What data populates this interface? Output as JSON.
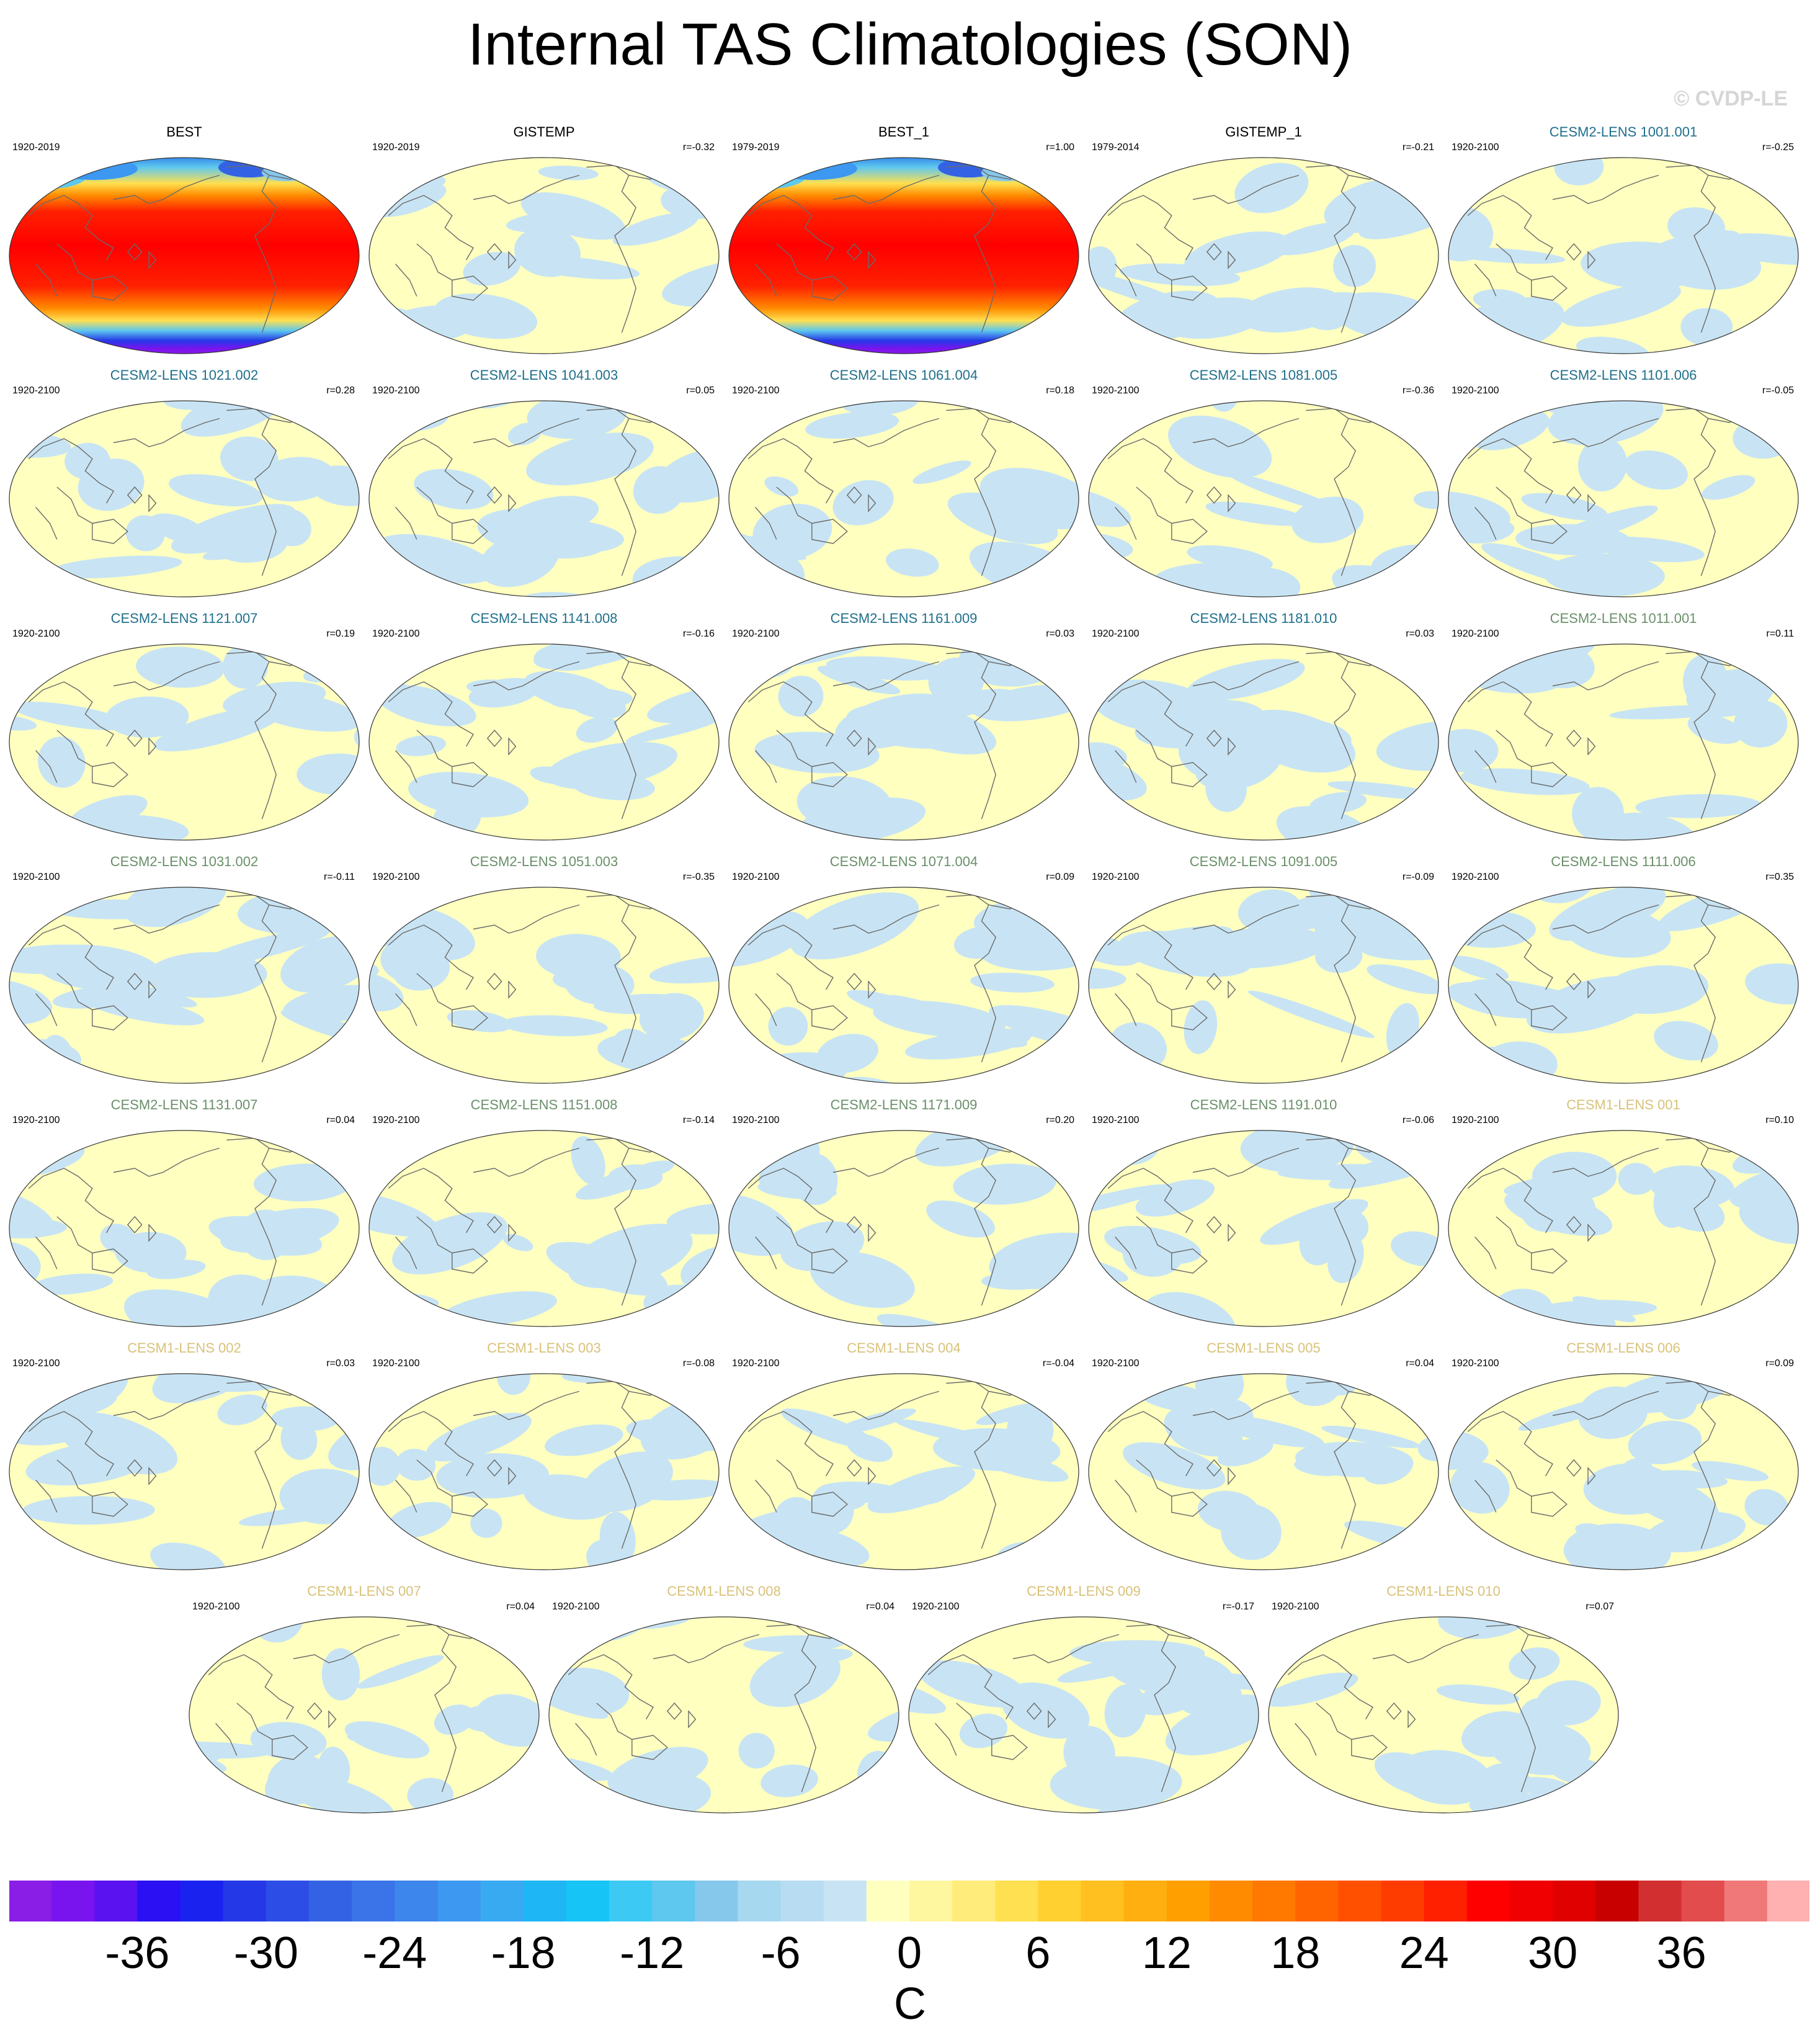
{
  "title": "Internal TAS Climatologies (SON)",
  "copyright": "© CVDP-LE",
  "chart_data": {
    "type": "heatmap",
    "description_kind": "map-panels",
    "panels": [
      {
        "name": "BEST",
        "years": "1920-2019",
        "r": "",
        "style": "full",
        "title_color": "#000000"
      },
      {
        "name": "GISTEMP",
        "years": "1920-2019",
        "r": "r=-0.32",
        "style": "anomaly",
        "title_color": "#000000"
      },
      {
        "name": "BEST_1",
        "years": "1979-2019",
        "r": "r=1.00",
        "style": "full",
        "title_color": "#000000"
      },
      {
        "name": "GISTEMP_1",
        "years": "1979-2014",
        "r": "r=-0.21",
        "style": "anomaly",
        "title_color": "#000000"
      },
      {
        "name": "CESM2-LENS 1001.001",
        "years": "1920-2100",
        "r": "r=-0.25",
        "style": "anomaly",
        "title_color": "#1f6f8b"
      },
      {
        "name": "CESM2-LENS 1021.002",
        "years": "1920-2100",
        "r": "r=0.28",
        "style": "anomaly",
        "title_color": "#1f6f8b"
      },
      {
        "name": "CESM2-LENS 1041.003",
        "years": "1920-2100",
        "r": "r=0.05",
        "style": "anomaly",
        "title_color": "#1f6f8b"
      },
      {
        "name": "CESM2-LENS 1061.004",
        "years": "1920-2100",
        "r": "r=0.18",
        "style": "anomaly",
        "title_color": "#1f6f8b"
      },
      {
        "name": "CESM2-LENS 1081.005",
        "years": "1920-2100",
        "r": "r=-0.36",
        "style": "anomaly",
        "title_color": "#1f6f8b"
      },
      {
        "name": "CESM2-LENS 1101.006",
        "years": "1920-2100",
        "r": "r=-0.05",
        "style": "anomaly",
        "title_color": "#1f6f8b"
      },
      {
        "name": "CESM2-LENS 1121.007",
        "years": "1920-2100",
        "r": "r=0.19",
        "style": "anomaly",
        "title_color": "#1f6f8b"
      },
      {
        "name": "CESM2-LENS 1141.008",
        "years": "1920-2100",
        "r": "r=-0.16",
        "style": "anomaly",
        "title_color": "#1f6f8b"
      },
      {
        "name": "CESM2-LENS 1161.009",
        "years": "1920-2100",
        "r": "r=0.03",
        "style": "anomaly",
        "title_color": "#1f6f8b"
      },
      {
        "name": "CESM2-LENS 1181.010",
        "years": "1920-2100",
        "r": "r=0.03",
        "style": "anomaly",
        "title_color": "#1f6f8b"
      },
      {
        "name": "CESM2-LENS 1011.001",
        "years": "1920-2100",
        "r": "r=0.11",
        "style": "anomaly",
        "title_color": "#6a8f6a"
      },
      {
        "name": "CESM2-LENS 1031.002",
        "years": "1920-2100",
        "r": "r=-0.11",
        "style": "anomaly",
        "title_color": "#6a8f6a"
      },
      {
        "name": "CESM2-LENS 1051.003",
        "years": "1920-2100",
        "r": "r=-0.35",
        "style": "anomaly",
        "title_color": "#6a8f6a"
      },
      {
        "name": "CESM2-LENS 1071.004",
        "years": "1920-2100",
        "r": "r=0.09",
        "style": "anomaly",
        "title_color": "#6a8f6a"
      },
      {
        "name": "CESM2-LENS 1091.005",
        "years": "1920-2100",
        "r": "r=-0.09",
        "style": "anomaly",
        "title_color": "#6a8f6a"
      },
      {
        "name": "CESM2-LENS 1111.006",
        "years": "1920-2100",
        "r": "r=0.35",
        "style": "anomaly",
        "title_color": "#6a8f6a"
      },
      {
        "name": "CESM2-LENS 1131.007",
        "years": "1920-2100",
        "r": "r=0.04",
        "style": "anomaly",
        "title_color": "#6a8f6a"
      },
      {
        "name": "CESM2-LENS 1151.008",
        "years": "1920-2100",
        "r": "r=-0.14",
        "style": "anomaly",
        "title_color": "#6a8f6a"
      },
      {
        "name": "CESM2-LENS 1171.009",
        "years": "1920-2100",
        "r": "r=0.20",
        "style": "anomaly",
        "title_color": "#6a8f6a"
      },
      {
        "name": "CESM2-LENS 1191.010",
        "years": "1920-2100",
        "r": "r=-0.06",
        "style": "anomaly",
        "title_color": "#6a8f6a"
      },
      {
        "name": "CESM1-LENS 001",
        "years": "1920-2100",
        "r": "r=0.10",
        "style": "anomaly",
        "title_color": "#d8c27a"
      },
      {
        "name": "CESM1-LENS 002",
        "years": "1920-2100",
        "r": "r=0.03",
        "style": "anomaly",
        "title_color": "#d8c27a"
      },
      {
        "name": "CESM1-LENS 003",
        "years": "1920-2100",
        "r": "r=-0.08",
        "style": "anomaly",
        "title_color": "#d8c27a"
      },
      {
        "name": "CESM1-LENS 004",
        "years": "1920-2100",
        "r": "r=-0.04",
        "style": "anomaly",
        "title_color": "#d8c27a"
      },
      {
        "name": "CESM1-LENS 005",
        "years": "1920-2100",
        "r": "r=0.04",
        "style": "anomaly",
        "title_color": "#d8c27a"
      },
      {
        "name": "CESM1-LENS 006",
        "years": "1920-2100",
        "r": "r=0.09",
        "style": "anomaly",
        "title_color": "#d8c27a"
      },
      {
        "name": "CESM1-LENS 007",
        "years": "1920-2100",
        "r": "r=0.04",
        "style": "anomaly",
        "title_color": "#d8c27a"
      },
      {
        "name": "CESM1-LENS 008",
        "years": "1920-2100",
        "r": "r=0.04",
        "style": "anomaly",
        "title_color": "#d8c27a"
      },
      {
        "name": "CESM1-LENS 009",
        "years": "1920-2100",
        "r": "r=-0.17",
        "style": "anomaly",
        "title_color": "#d8c27a"
      },
      {
        "name": "CESM1-LENS 010",
        "years": "1920-2100",
        "r": "r=0.07",
        "style": "anomaly",
        "title_color": "#d8c27a"
      }
    ],
    "colorbar": {
      "unit": "C",
      "ticks": [
        "-36",
        "-30",
        "-24",
        "-18",
        "-12",
        "-6",
        "0",
        "6",
        "12",
        "18",
        "24",
        "30",
        "36"
      ],
      "tick_values": [
        -36,
        -30,
        -24,
        -18,
        -12,
        -6,
        0,
        6,
        12,
        18,
        24,
        30,
        36
      ],
      "range": [
        -42,
        42
      ],
      "bin_width": 2,
      "colors": [
        "#8a1ee6",
        "#7a14ee",
        "#5a12f0",
        "#2a10f2",
        "#1a22f0",
        "#2438e8",
        "#2c4ee6",
        "#3462e4",
        "#3a74e8",
        "#3c86ec",
        "#3c98f0",
        "#38aaf2",
        "#1eb6f4",
        "#16c4f6",
        "#3ccaf4",
        "#5ec8ee",
        "#86c8ec",
        "#a6d8f0",
        "#b8dcf2",
        "#c8e4f4",
        "#ffffc0",
        "#fff6a0",
        "#ffec7a",
        "#ffe050",
        "#ffd030",
        "#ffc020",
        "#ffb010",
        "#ffa000",
        "#ff8c00",
        "#ff7800",
        "#ff6400",
        "#ff5000",
        "#ff3c00",
        "#ff2000",
        "#ff0000",
        "#f00000",
        "#e00000",
        "#c80000",
        "#d23030",
        "#e24c4c",
        "#f07878",
        "#ffb0b0"
      ]
    }
  }
}
